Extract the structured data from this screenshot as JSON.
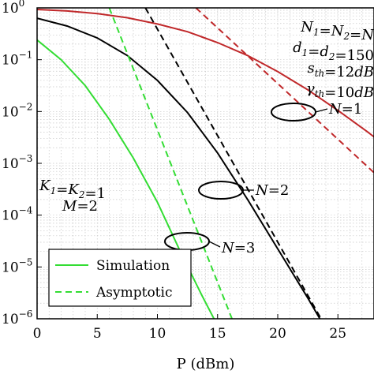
{
  "chart_data": {
    "type": "line",
    "xlabel": "P (dBm)",
    "ylabel": "",
    "xlim": [
      0,
      28
    ],
    "ylim_log10": [
      -6,
      0
    ],
    "y_scale": "log",
    "grid": true,
    "x_ticks": [
      0,
      5,
      10,
      15,
      20,
      25
    ],
    "x_tick_labels": [
      "0",
      "5",
      "10",
      "15",
      "20",
      "25"
    ],
    "y_ticks_log10": [
      0,
      -1,
      -2,
      -3,
      -4,
      -5,
      -6
    ],
    "y_tick_labels": [
      "10^0",
      "10^−1",
      "10^−2",
      "10^−3",
      "10^−4",
      "10^−5",
      "10^−6"
    ],
    "legend": {
      "placement": "bottom-left",
      "entries": [
        {
          "label": "Simulation",
          "style": "solid",
          "color": "#33dd33"
        },
        {
          "label": "Asymptotic",
          "style": "dashed",
          "color": "#33dd33"
        }
      ]
    },
    "annotations": {
      "params": [
        "N1=N2=N",
        "d1=d2=150",
        "s_th=12dB",
        "γ_th=10dB"
      ],
      "left": [
        "K1=K2=1",
        "M=2"
      ],
      "curve_labels": [
        "N=1",
        "N=2",
        "N=3"
      ]
    },
    "series": [
      {
        "style": "solid",
        "color": "#c0282a",
        "x": [
          0,
          2.5,
          5,
          7.5,
          10,
          12.5,
          15,
          17.5,
          20,
          22.5,
          25,
          27.5,
          28
        ],
        "y_log10": [
          -0.03,
          -0.06,
          -0.11,
          -0.19,
          -0.31,
          -0.46,
          -0.67,
          -0.92,
          -1.23,
          -1.58,
          -1.98,
          -2.4,
          -2.49
        ]
      },
      {
        "style": "dashed",
        "color": "#c0282a",
        "x": [
          13.2,
          28
        ],
        "y_log10": [
          0,
          -3.18
        ]
      },
      {
        "style": "solid",
        "color": "#000000",
        "x": [
          0,
          2.5,
          5,
          7.5,
          10,
          12.5,
          15,
          17.5,
          20,
          22.5,
          23.5
        ],
        "y_log10": [
          -0.2,
          -0.35,
          -0.58,
          -0.92,
          -1.4,
          -2.02,
          -2.8,
          -3.7,
          -4.65,
          -5.6,
          -6
        ]
      },
      {
        "style": "dashed",
        "color": "#000000",
        "x": [
          9.0,
          23.6
        ],
        "y_log10": [
          0,
          -6
        ]
      },
      {
        "style": "solid",
        "color": "#33dd33",
        "x": [
          0,
          2,
          4,
          6,
          8,
          10,
          12,
          13.7,
          14.7
        ],
        "y_log10": [
          -0.62,
          -1.0,
          -1.5,
          -2.15,
          -2.9,
          -3.75,
          -4.75,
          -5.55,
          -6
        ]
      },
      {
        "style": "dashed",
        "color": "#33dd33",
        "x": [
          6.0,
          16.2
        ],
        "y_log10": [
          0,
          -6
        ]
      }
    ]
  }
}
